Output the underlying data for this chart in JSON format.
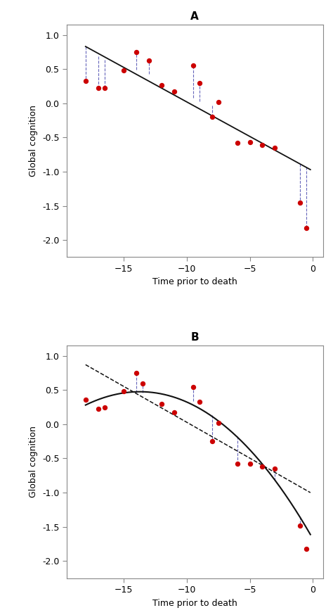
{
  "panel_A": {
    "title": "A",
    "scatter_x": [
      -18,
      -17,
      -16.5,
      -15,
      -14,
      -13,
      -12,
      -11,
      -9.5,
      -9,
      -8,
      -7.5,
      -6,
      -5,
      -4,
      -3,
      -1,
      -0.5
    ],
    "scatter_y": [
      0.33,
      0.22,
      0.22,
      0.48,
      0.75,
      0.62,
      0.27,
      0.17,
      0.55,
      0.3,
      -0.2,
      0.02,
      -0.58,
      -0.57,
      -0.61,
      -0.65,
      -1.45,
      -1.82
    ],
    "line_x_start": -18,
    "line_x_end": -0.2,
    "line_y_start": 0.83,
    "line_y_end": -0.97,
    "vline_pairs": [
      [
        -18,
        0.83,
        0.33
      ],
      [
        -17,
        0.69,
        0.22
      ],
      [
        -16.5,
        0.64,
        0.22
      ],
      [
        -14,
        0.49,
        0.75
      ],
      [
        -13,
        0.43,
        0.62
      ],
      [
        -9.5,
        0.08,
        0.55
      ],
      [
        -9,
        0.03,
        0.3
      ],
      [
        -8,
        -0.03,
        -0.2
      ],
      [
        -1,
        -0.89,
        -1.45
      ],
      [
        -0.5,
        -0.93,
        -1.82
      ]
    ]
  },
  "panel_B": {
    "title": "B",
    "scatter_x": [
      -18,
      -17,
      -16.5,
      -15,
      -14,
      -13.5,
      -12,
      -11,
      -9.5,
      -9,
      -8,
      -7.5,
      -6,
      -5,
      -4,
      -3,
      -1,
      -0.5
    ],
    "scatter_y": [
      0.36,
      0.22,
      0.25,
      0.48,
      0.75,
      0.6,
      0.3,
      0.17,
      0.54,
      0.33,
      -0.25,
      0.02,
      -0.58,
      -0.58,
      -0.62,
      -0.65,
      -1.48,
      -1.82
    ],
    "curve_points_x": [
      -18,
      -16,
      -14,
      -12,
      -10,
      -8,
      -6,
      -4,
      -2,
      -0.5
    ],
    "curve_points_y": [
      0.29,
      0.41,
      0.46,
      0.44,
      0.34,
      0.13,
      -0.18,
      -0.6,
      -1.1,
      -1.5
    ],
    "dashed_x_start": -18,
    "dashed_x_end": -0.2,
    "dashed_y_start": 0.87,
    "dashed_y_end": -1.0,
    "vline_pairs": [
      [
        -14,
        0.46,
        0.75
      ],
      [
        -13.5,
        0.46,
        0.6
      ],
      [
        -9.5,
        0.34,
        0.54
      ],
      [
        -9,
        0.3,
        0.33
      ],
      [
        -8,
        0.13,
        -0.25
      ],
      [
        -6,
        -0.18,
        -0.58
      ],
      [
        -3,
        -0.82,
        -0.65
      ],
      [
        -1,
        -1.35,
        -1.48
      ]
    ]
  },
  "scatter_color": "#cc0000",
  "scatter_size": 28,
  "line_color": "#111111",
  "vline_color": "#6666bb",
  "ylabel": "Global cognition",
  "xlabel": "Time prior to death",
  "xlim": [
    -19.5,
    0.8
  ],
  "ylim": [
    -2.25,
    1.15
  ],
  "yticks": [
    1.0,
    0.5,
    0.0,
    -0.5,
    -1.0,
    -1.5,
    -2.0
  ],
  "xticks": [
    -15,
    -10,
    -5,
    0
  ],
  "spine_color": "#888888"
}
